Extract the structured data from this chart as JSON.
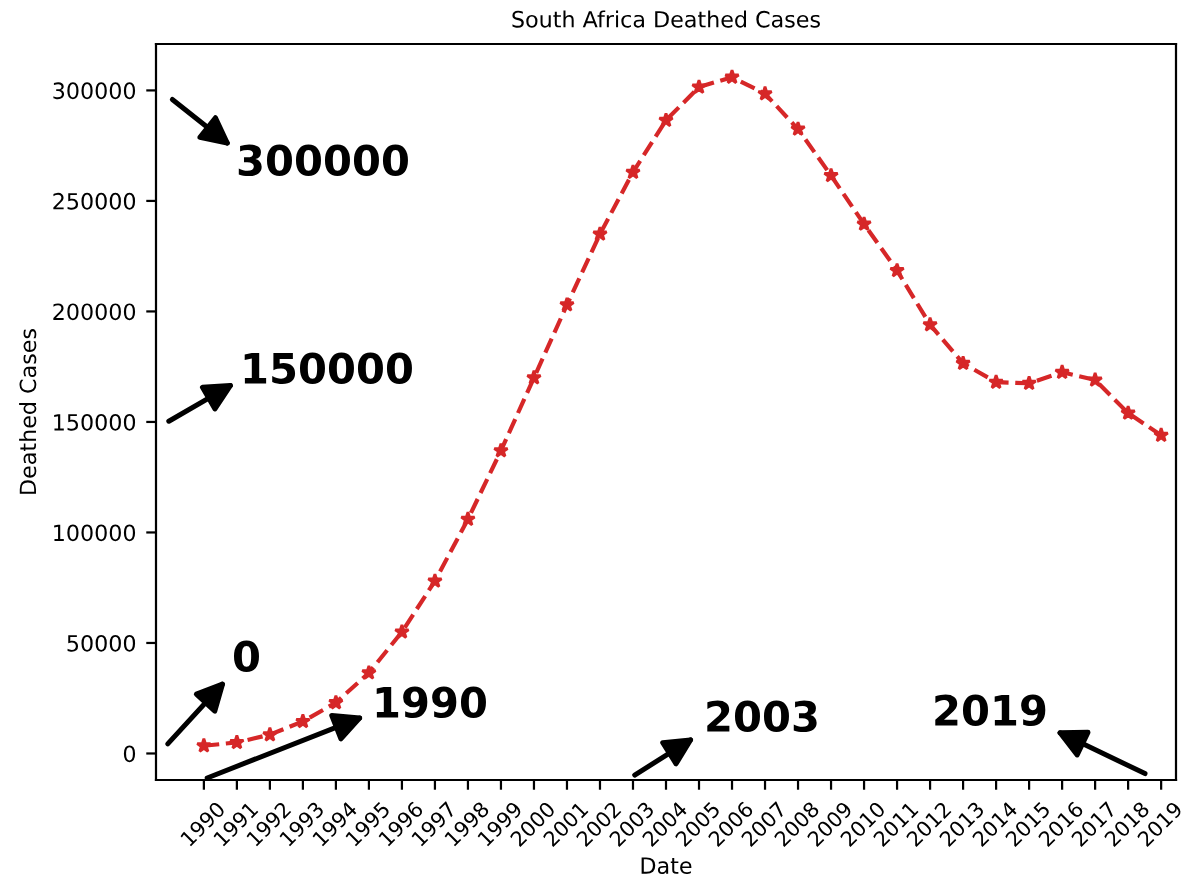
{
  "chart_data": {
    "type": "line",
    "title": "South Africa Deathed Cases",
    "xlabel": "Date",
    "ylabel": "Deathed Cases",
    "categories": [
      "1990",
      "1991",
      "1992",
      "1993",
      "1994",
      "1995",
      "1996",
      "1997",
      "1998",
      "1999",
      "2000",
      "2001",
      "2002",
      "2003",
      "2004",
      "2005",
      "2006",
      "2007",
      "2008",
      "2009",
      "2010",
      "2011",
      "2012",
      "2013",
      "2014",
      "2015",
      "2016",
      "2017",
      "2018",
      "2019"
    ],
    "series": [
      {
        "color": "#d62728",
        "values": [
          3500,
          5000,
          8500,
          14500,
          23000,
          36500,
          55000,
          78000,
          106000,
          137000,
          170000,
          203000,
          235000,
          263000,
          286500,
          301500,
          306000,
          298500,
          282500,
          261500,
          239500,
          218500,
          194000,
          176500,
          168000,
          167500,
          172500,
          169000,
          154000,
          144000
        ]
      }
    ],
    "marker": "star",
    "line_style": "dashed",
    "ylim": [
      -12000,
      321000
    ],
    "yticks": [
      0,
      50000,
      100000,
      150000,
      200000,
      250000,
      300000
    ],
    "grid": false,
    "legend": false,
    "annotations": [
      "300000",
      "150000",
      "0",
      "1990",
      "2003",
      "2019"
    ]
  }
}
